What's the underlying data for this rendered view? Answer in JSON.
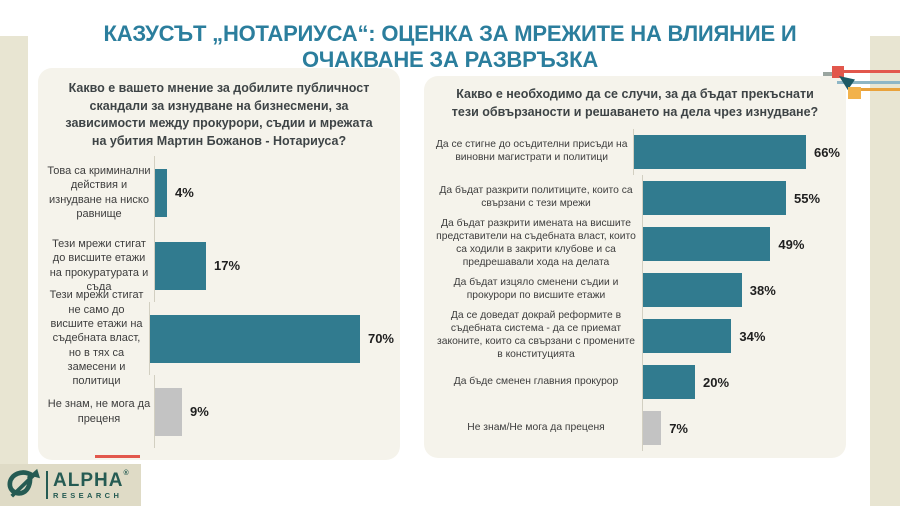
{
  "page_title": "КАЗУСЪТ „НОТАРИУСА“: ОЦЕНКА ЗА МРЕЖИТЕ НА ВЛИЯНИЕ И ОЧАКВАНЕ ЗА РАЗВРЪЗКА",
  "colors": {
    "title_teal": "#2b7e9d",
    "bar_teal": "#317b8f",
    "bar_gray": "#c3c3c3",
    "panel_background": "#f5f3eb",
    "side_strip_beige": "#e8e5d2",
    "logo_teal": "#255b53",
    "pin_red": "#e2574c",
    "pin_yellow": "#f2b24b",
    "pin_blue_line": "#8eb6c6",
    "pin_orange_line": "#e9a23c",
    "pin_dark_triangle": "#1d5a66"
  },
  "branding": {
    "logo_name": "ALPHA",
    "logo_registered": "®",
    "logo_sub": "RESEARCH"
  },
  "chart_data": [
    {
      "type": "bar",
      "orientation": "horizontal",
      "title": "Какво е вашето мнение за добилите публичност скандали за изнудване на бизнесмени, за зависимости между прокурори, съдии и мрежата на убития Мартин Божанов - Нотариуса?",
      "categories": [
        "Това са криминални действия и изнудване на ниско равнище",
        "Тези мрежи стигат до висшите етажи на прокуратурата и съда",
        "Тези мрежи стигат не само до висшите етажи на съдебната власт, но в тях са замесени и политици",
        "Не знам, не мога да преценя"
      ],
      "values": [
        4,
        17,
        70,
        9
      ],
      "value_labels": [
        "4%",
        "17%",
        "70%",
        "9%"
      ],
      "bar_colors": [
        "teal",
        "teal",
        "teal",
        "gray"
      ],
      "xlim": [
        0,
        80
      ],
      "value_format": "percent",
      "grid": false,
      "legend": false
    },
    {
      "type": "bar",
      "orientation": "horizontal",
      "title": "Какво е необходимо да се случи, за да бъдат прекъснати тези обвързаности и решаването на дела чрез изнудване?",
      "categories": [
        "Да се стигне до осъдителни присъди на виновни магистрати и политици",
        "Да бъдат разкрити политиците, които са свързани с тези мрежи",
        "Да бъдат разкрити имената на висшите представители на съдебната власт, които са ходили в закрити клубове и са предрешавали хода на делата",
        "Да бъдат изцяло сменени съдии и прокурори по висшите етажи",
        "Да се доведат докрай реформите в съдебната система - да се приемат законите, които са свързани с промените в конституцията",
        "Да бъде сменен главния прокурор",
        "Не знам/Не мога да преценя"
      ],
      "values": [
        66,
        55,
        49,
        38,
        34,
        20,
        7
      ],
      "value_labels": [
        "66%",
        "55%",
        "49%",
        "38%",
        "34%",
        "20%",
        "7%"
      ],
      "bar_colors": [
        "teal",
        "teal",
        "teal",
        "teal",
        "teal",
        "teal",
        "gray"
      ],
      "xlim": [
        0,
        75
      ],
      "value_format": "percent",
      "grid": false,
      "legend": false
    }
  ]
}
